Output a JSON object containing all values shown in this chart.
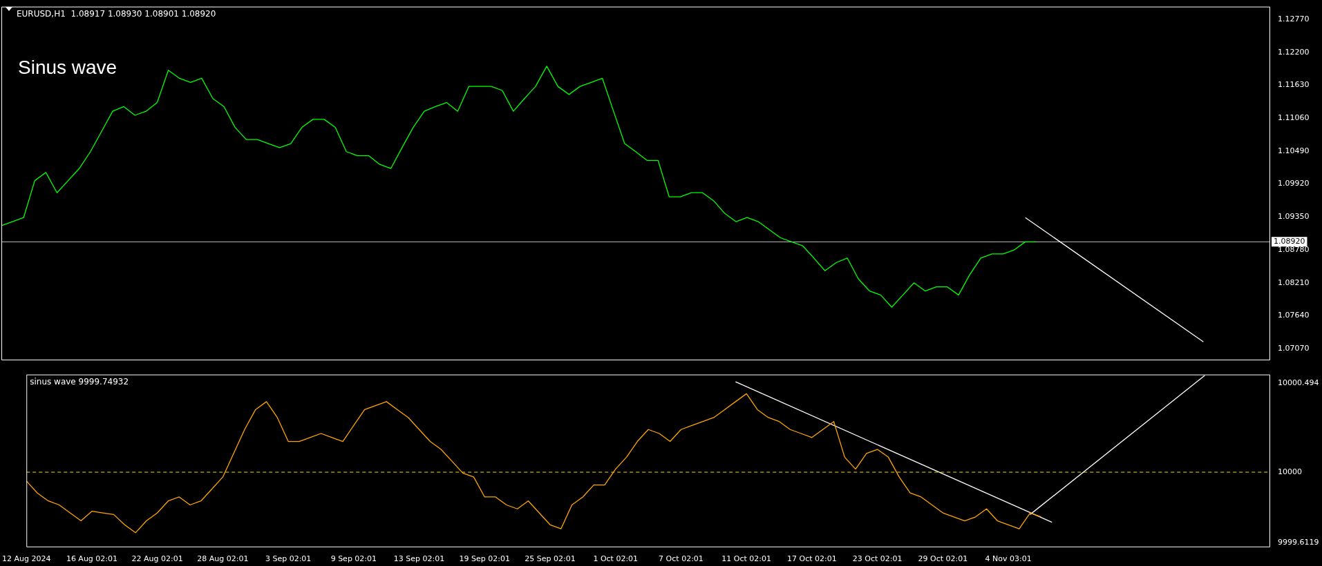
{
  "chart_data": [
    {
      "type": "line",
      "title": "EURUSD,H1  1.08917 1.08930 1.08901 1.08920",
      "annotations": [
        "Sinus wave"
      ],
      "marker": "none",
      "tick_labels": "y",
      "categories": [
        null,
        null,
        null,
        null,
        null,
        null,
        null,
        null,
        null,
        null,
        null,
        null,
        null,
        null,
        null,
        null,
        null,
        null,
        null,
        null,
        null,
        null,
        null,
        null,
        null,
        null,
        null,
        null,
        null,
        null,
        null,
        null,
        null,
        null,
        null,
        null,
        null,
        null,
        null,
        null,
        null,
        null,
        null,
        null,
        null,
        null,
        null,
        null,
        null,
        null,
        null,
        null,
        null,
        null,
        null,
        null,
        null,
        null,
        null,
        null,
        null,
        null,
        null,
        null,
        null,
        null,
        null,
        null,
        null,
        null,
        null,
        null,
        null,
        null,
        null,
        null,
        null,
        null,
        null,
        null,
        null,
        null,
        null,
        null,
        null,
        null,
        null,
        null,
        null,
        null,
        null,
        null,
        null,
        null,
        null,
        null,
        null,
        null,
        null,
        null,
        null,
        null,
        null,
        null,
        null,
        null,
        null,
        null,
        null,
        null,
        null,
        null,
        null,
        null,
        null
      ],
      "ylim": [
        1.0687,
        1.1299
      ],
      "yticks": [
        {
          "value": 1.0707,
          "label": "1.07070"
        },
        {
          "value": 1.0764,
          "label": "1.07640"
        },
        {
          "value": 1.0821,
          "label": "1.08210"
        },
        {
          "value": 1.0878,
          "label": "1.08780"
        },
        {
          "value": 1.0935,
          "label": "1.09350"
        },
        {
          "value": 1.0992,
          "label": "1.09920"
        },
        {
          "value": 1.1049,
          "label": "1.10490"
        },
        {
          "value": 1.1106,
          "label": "1.11060"
        },
        {
          "value": 1.1163,
          "label": "1.11630"
        },
        {
          "value": 1.122,
          "label": "1.12200"
        },
        {
          "value": 1.1277,
          "label": "1.12770"
        }
      ],
      "ref_lines": [
        {
          "axis": "y",
          "value": 1.0892,
          "label": "1.08920",
          "color": "#c0c0c0"
        }
      ],
      "series": [
        {
          "color": "#00ff00",
          "values": [
            1.092,
            1.0927,
            1.0934,
            1.0998,
            1.1012,
            1.0977,
            1.0998,
            1.1019,
            1.1048,
            1.1083,
            1.1118,
            1.1126,
            1.1111,
            1.1118,
            1.1133,
            1.1189,
            1.1175,
            1.1168,
            1.1175,
            1.114,
            1.1126,
            1.109,
            1.1069,
            1.1069,
            1.1062,
            1.1055,
            1.1062,
            1.109,
            1.1104,
            1.1104,
            1.109,
            1.1048,
            1.1041,
            1.1041,
            1.1026,
            1.1019,
            1.1055,
            1.109,
            1.1118,
            1.1126,
            1.1133,
            1.1118,
            1.1161,
            1.1161,
            1.1161,
            1.1154,
            1.1118,
            1.114,
            1.1161,
            1.1196,
            1.1161,
            1.1147,
            1.1161,
            1.1168,
            1.1175,
            1.1118,
            1.1062,
            1.1048,
            1.1033,
            1.1033,
            1.097,
            1.097,
            1.0977,
            1.0977,
            1.0963,
            1.0941,
            1.0927,
            1.0934,
            1.0927,
            1.0913,
            1.0899,
            1.0892,
            1.0885,
            1.0864,
            1.0842,
            1.0856,
            1.0864,
            1.0828,
            1.0807,
            1.08,
            1.0779,
            1.08,
            1.0821,
            1.0807,
            1.0814,
            1.0814,
            1.08,
            1.0835,
            1.0864,
            1.0871,
            1.0871,
            1.0878,
            1.0892,
            1.0892,
            null,
            null,
            null,
            null,
            null,
            null,
            null,
            null,
            null,
            null,
            null,
            null,
            null,
            null,
            null,
            null,
            null,
            null,
            null,
            null,
            null
          ]
        },
        {
          "color": "#ffffff",
          "values": [
            null,
            null,
            null,
            null,
            null,
            null,
            null,
            null,
            null,
            null,
            null,
            null,
            null,
            null,
            null,
            null,
            null,
            null,
            null,
            null,
            null,
            null,
            null,
            null,
            null,
            null,
            null,
            null,
            null,
            null,
            null,
            null,
            null,
            null,
            null,
            null,
            null,
            null,
            null,
            null,
            null,
            null,
            null,
            null,
            null,
            null,
            null,
            null,
            null,
            null,
            null,
            null,
            null,
            null,
            null,
            null,
            null,
            null,
            null,
            null,
            null,
            null,
            null,
            null,
            null,
            null,
            null,
            null,
            null,
            null,
            null,
            null,
            null,
            null,
            null,
            null,
            null,
            null,
            null,
            null,
            null,
            null,
            null,
            null,
            null,
            null,
            null,
            null,
            null,
            null,
            null,
            null,
            1.0934,
            null,
            null,
            null,
            null,
            null,
            null,
            null,
            null,
            null,
            null,
            null,
            null,
            null,
            null,
            null,
            1.0719,
            null,
            null,
            null,
            null,
            null,
            null
          ]
        }
      ]
    },
    {
      "type": "line",
      "title": "sinus wave 9999.74932",
      "marker": "none",
      "categories": [
        "12 Aug 2024",
        null,
        null,
        null,
        null,
        null,
        "16 Aug 02:01",
        null,
        null,
        null,
        null,
        null,
        "22 Aug 02:01",
        null,
        null,
        null,
        null,
        null,
        "28 Aug 02:01",
        null,
        null,
        null,
        null,
        null,
        "3 Sep 02:01",
        null,
        null,
        null,
        null,
        null,
        "9 Sep 02:01",
        null,
        null,
        null,
        null,
        null,
        "13 Sep 02:01",
        null,
        null,
        null,
        null,
        null,
        "19 Sep 02:01",
        null,
        null,
        null,
        null,
        null,
        "25 Sep 02:01",
        null,
        null,
        null,
        null,
        null,
        "1 Oct 02:01",
        null,
        null,
        null,
        null,
        null,
        "7 Oct 02:01",
        null,
        null,
        null,
        null,
        null,
        "11 Oct 02:01",
        null,
        null,
        null,
        null,
        null,
        "17 Oct 02:01",
        null,
        null,
        null,
        null,
        null,
        "23 Oct 02:01",
        null,
        null,
        null,
        null,
        null,
        "29 Oct 02:01",
        null,
        null,
        null,
        null,
        null,
        "4 Nov 03:01",
        null,
        null,
        null,
        null,
        null,
        null,
        null,
        null,
        null,
        null,
        null,
        null,
        null,
        null,
        null,
        null,
        null,
        null,
        null,
        null,
        null,
        null,
        null,
        null
      ],
      "ylim": [
        9999.585,
        10000.54
      ],
      "yticks": [
        9999.6119,
        10000,
        10000.494
      ],
      "ref_lines": [
        {
          "axis": "y",
          "value": 10000,
          "color": "#ffd700",
          "line_style": "dashed"
        }
      ],
      "series": [
        {
          "color": "#ffa500",
          "values": [
            9999.951,
            9999.885,
            9999.841,
            9999.819,
            9999.775,
            9999.731,
            9999.784,
            9999.775,
            9999.766,
            9999.709,
            9999.665,
            9999.731,
            9999.775,
            9999.841,
            9999.863,
            9999.819,
            9999.841,
            9999.907,
            9999.973,
            10000.104,
            10000.236,
            10000.346,
            10000.39,
            10000.302,
            10000.17,
            10000.17,
            10000.192,
            10000.214,
            10000.192,
            10000.17,
            10000.258,
            10000.346,
            10000.368,
            10000.39,
            10000.346,
            10000.302,
            10000.236,
            10000.17,
            10000.126,
            10000.061,
            9999.995,
            9999.973,
            9999.863,
            9999.863,
            9999.819,
            9999.797,
            9999.841,
            9999.775,
            9999.709,
            9999.687,
            9999.819,
            9999.863,
            9999.929,
            9999.929,
            10000.017,
            10000.083,
            10000.17,
            10000.236,
            10000.214,
            10000.17,
            10000.236,
            10000.258,
            10000.28,
            10000.302,
            10000.346,
            10000.39,
            10000.434,
            10000.346,
            10000.302,
            10000.28,
            10000.236,
            10000.214,
            10000.192,
            10000.236,
            10000.28,
            10000.083,
            10000.017,
            10000.104,
            10000.126,
            10000.083,
            9999.973,
            9999.885,
            9999.863,
            9999.819,
            9999.775,
            9999.753,
            9999.731,
            9999.753,
            9999.797,
            9999.731,
            9999.709,
            9999.687,
            9999.775,
            9999.753,
            null,
            null,
            null,
            null,
            null,
            null,
            null,
            null,
            null,
            null,
            null,
            null,
            null,
            null,
            null,
            null,
            null,
            null,
            null,
            null,
            null
          ]
        },
        {
          "color": "#ffffff",
          "values": [
            null,
            null,
            null,
            null,
            null,
            null,
            null,
            null,
            null,
            null,
            null,
            null,
            null,
            null,
            null,
            null,
            null,
            null,
            null,
            null,
            null,
            null,
            null,
            null,
            null,
            null,
            null,
            null,
            null,
            null,
            null,
            null,
            null,
            null,
            null,
            null,
            null,
            null,
            null,
            null,
            null,
            null,
            null,
            null,
            null,
            null,
            null,
            null,
            null,
            null,
            null,
            null,
            null,
            null,
            null,
            null,
            null,
            null,
            null,
            null,
            null,
            null,
            null,
            null,
            null,
            10000.5,
            null,
            null,
            null,
            null,
            null,
            null,
            null,
            null,
            null,
            null,
            null,
            null,
            null,
            null,
            null,
            null,
            null,
            null,
            null,
            null,
            null,
            null,
            null,
            null,
            null,
            null,
            null,
            null,
            9999.723,
            null,
            null,
            null,
            null,
            null,
            null,
            null,
            null,
            null,
            null,
            null,
            null,
            null,
            null,
            null,
            null,
            null,
            null,
            null,
            null
          ]
        },
        {
          "color": "#ffffff",
          "values": [
            null,
            null,
            null,
            null,
            null,
            null,
            null,
            null,
            null,
            null,
            null,
            null,
            null,
            null,
            null,
            null,
            null,
            null,
            null,
            null,
            null,
            null,
            null,
            null,
            null,
            null,
            null,
            null,
            null,
            null,
            null,
            null,
            null,
            null,
            null,
            null,
            null,
            null,
            null,
            null,
            null,
            null,
            null,
            null,
            null,
            null,
            null,
            null,
            null,
            null,
            null,
            null,
            null,
            null,
            null,
            null,
            null,
            null,
            null,
            null,
            null,
            null,
            null,
            null,
            null,
            null,
            null,
            null,
            null,
            null,
            null,
            null,
            null,
            null,
            null,
            null,
            null,
            null,
            null,
            null,
            null,
            null,
            null,
            null,
            null,
            null,
            null,
            null,
            null,
            null,
            null,
            null,
            9999.766,
            null,
            null,
            null,
            null,
            null,
            null,
            null,
            null,
            null,
            null,
            null,
            null,
            null,
            null,
            null,
            10000.535,
            null,
            null,
            null,
            null,
            null,
            null
          ]
        }
      ]
    }
  ]
}
